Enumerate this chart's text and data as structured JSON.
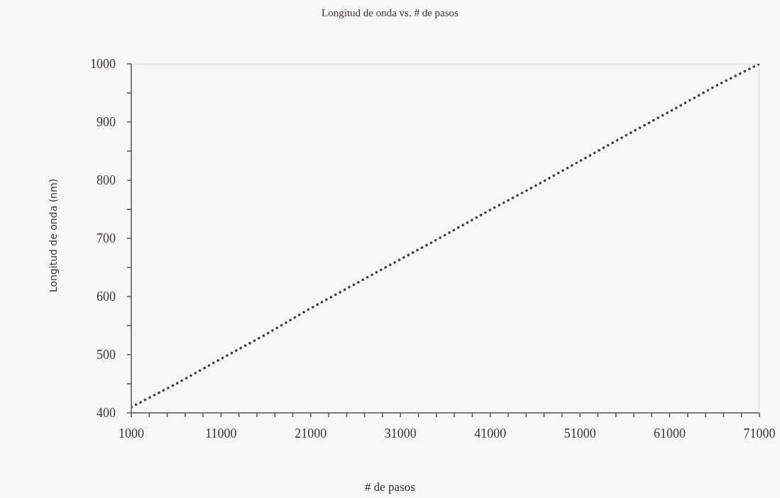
{
  "chart_data": {
    "type": "line",
    "title": "Longitud de onda vs. # de pasos",
    "xlabel": "# de pasos",
    "ylabel": "Longitud de onda (nm)",
    "x": [
      1000,
      6000,
      11000,
      16000,
      21000,
      26000,
      31000,
      36000,
      41000,
      46000,
      51000,
      56000,
      61000,
      66000,
      71000
    ],
    "series": [
      {
        "color": "#4a3b44",
        "values": [
          410,
          450,
          493,
          535,
          580,
          622,
          664,
          706,
          749,
          790,
          833,
          876,
          918,
          961,
          1000
        ]
      }
    ],
    "xlim": [
      1000,
      71000
    ],
    "xticks": [
      1000,
      {
        "value": 3000,
        "label": null
      },
      {
        "value": 5000,
        "label": null
      },
      {
        "value": 7000,
        "label": null
      },
      {
        "value": 9000,
        "label": null
      },
      11000,
      {
        "value": 13000,
        "label": null
      },
      {
        "value": 15000,
        "label": null
      },
      {
        "value": 17000,
        "label": null
      },
      {
        "value": 19000,
        "label": null
      },
      21000,
      {
        "value": 23000,
        "label": null
      },
      {
        "value": 25000,
        "label": null
      },
      {
        "value": 27000,
        "label": null
      },
      {
        "value": 29000,
        "label": null
      },
      31000,
      {
        "value": 33000,
        "label": null
      },
      {
        "value": 35000,
        "label": null
      },
      {
        "value": 37000,
        "label": null
      },
      {
        "value": 39000,
        "label": null
      },
      41000,
      {
        "value": 43000,
        "label": null
      },
      {
        "value": 45000,
        "label": null
      },
      {
        "value": 47000,
        "label": null
      },
      {
        "value": 49000,
        "label": null
      },
      51000,
      {
        "value": 53000,
        "label": null
      },
      {
        "value": 55000,
        "label": null
      },
      {
        "value": 57000,
        "label": null
      },
      {
        "value": 59000,
        "label": null
      },
      61000,
      {
        "value": 63000,
        "label": null
      },
      {
        "value": 65000,
        "label": null
      },
      {
        "value": 67000,
        "label": null
      },
      {
        "value": 69000,
        "label": null
      },
      71000
    ],
    "ylim": [
      400,
      1000
    ],
    "yticks": [
      400,
      {
        "value": 450,
        "label": null
      },
      500,
      {
        "value": 550,
        "label": null
      },
      600,
      {
        "value": 650,
        "label": null
      },
      700,
      {
        "value": 750,
        "label": null
      },
      800,
      {
        "value": 850,
        "label": null
      },
      900,
      {
        "value": 950,
        "label": null
      },
      1000
    ],
    "grid": false,
    "legend": false,
    "marker": "none",
    "line_style": "dotted"
  }
}
